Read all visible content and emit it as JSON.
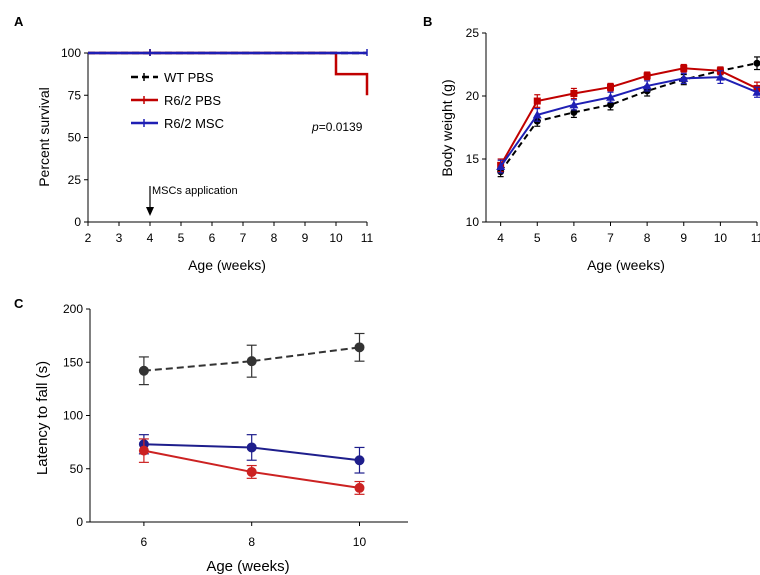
{
  "colors": {
    "wt": "#000000",
    "pbs": "#C00000",
    "msc": "#1F1FB4",
    "wt_c": "#333333",
    "pbs_c": "#CC2222",
    "msc_c": "#1E1E8C"
  },
  "chart_data": [
    {
      "panel": "A",
      "type": "line",
      "subtype": "survival-step",
      "xlabel": "Age (weeks)",
      "ylabel": "Percent survival",
      "xlim": [
        2,
        11
      ],
      "ylim": [
        0,
        100
      ],
      "xticks": [
        "2",
        "3",
        "4",
        "5",
        "6",
        "7",
        "8",
        "9",
        "10",
        "11"
      ],
      "yticks": [
        "0",
        "25",
        "50",
        "75",
        "100"
      ],
      "legend_position": "center-left",
      "annotation_text": "MSCs application",
      "annotation_x": 4,
      "pvalue_prefix": "p",
      "pvalue_value": "=0.0139",
      "series": [
        {
          "name": "WT PBS",
          "key": "wt",
          "dashed": true,
          "steps": [
            [
              2,
              100
            ],
            [
              11,
              100
            ]
          ],
          "censor": [
            4
          ]
        },
        {
          "name": "R6/2 PBS",
          "key": "pbs",
          "dashed": false,
          "steps": [
            [
              2,
              100
            ],
            [
              10,
              100
            ],
            [
              10,
              87.5
            ],
            [
              11,
              87.5
            ],
            [
              11,
              75
            ]
          ],
          "censor": [
            4
          ]
        },
        {
          "name": "R6/2 MSC",
          "key": "msc",
          "dashed": false,
          "steps": [
            [
              2,
              100
            ],
            [
              11,
              100
            ]
          ],
          "censor": [
            4,
            11
          ]
        }
      ]
    },
    {
      "panel": "B",
      "type": "line",
      "xlabel": "Age (weeks)",
      "ylabel": "Body weight (g)",
      "xlim": [
        3.6,
        11
      ],
      "ylim": [
        10,
        25
      ],
      "xticks": [
        "4",
        "5",
        "6",
        "7",
        "8",
        "9",
        "10",
        "11"
      ],
      "yticks": [
        "10",
        "15",
        "20",
        "25"
      ],
      "x": [
        4,
        5,
        6,
        7,
        8,
        9,
        10,
        11
      ],
      "series": [
        {
          "name": "",
          "key": "wt",
          "dashed": true,
          "marker": "circle",
          "values": [
            14.0,
            18.0,
            18.7,
            19.3,
            20.4,
            21.3,
            22.0,
            22.6
          ],
          "err": [
            0.4,
            0.4,
            0.4,
            0.4,
            0.4,
            0.4,
            0.3,
            0.5
          ]
        },
        {
          "name": "",
          "key": "pbs",
          "dashed": false,
          "marker": "square",
          "values": [
            14.5,
            19.6,
            20.2,
            20.7,
            21.6,
            22.2,
            22.0,
            20.6
          ],
          "err": [
            0.5,
            0.5,
            0.4,
            0.3,
            0.3,
            0.3,
            0.3,
            0.5
          ]
        },
        {
          "name": "",
          "key": "msc",
          "dashed": false,
          "marker": "triangle",
          "values": [
            14.4,
            18.5,
            19.3,
            19.9,
            20.8,
            21.4,
            21.5,
            20.3
          ],
          "err": [
            0.5,
            0.5,
            0.4,
            0.4,
            0.4,
            0.4,
            0.5,
            0.4
          ]
        }
      ]
    },
    {
      "panel": "C",
      "type": "line",
      "xlabel": "Age (weeks)",
      "ylabel": "Latency to fall (s)",
      "xlim": [
        5,
        10.9
      ],
      "ylim": [
        0,
        200
      ],
      "xticks": [
        "6",
        "8",
        "10"
      ],
      "yticks": [
        "0",
        "50",
        "100",
        "150",
        "200"
      ],
      "x": [
        6,
        8,
        10
      ],
      "series": [
        {
          "name": "",
          "key": "wt_c",
          "dashed": true,
          "values": [
            142,
            151,
            164
          ],
          "err": [
            13,
            15,
            13
          ]
        },
        {
          "name": "",
          "key": "msc_c",
          "dashed": false,
          "values": [
            73,
            70,
            58
          ],
          "err": [
            9,
            12,
            12
          ]
        },
        {
          "name": "",
          "key": "pbs_c",
          "dashed": false,
          "values": [
            67,
            47,
            32
          ],
          "err": [
            11,
            6,
            6
          ]
        }
      ]
    }
  ]
}
